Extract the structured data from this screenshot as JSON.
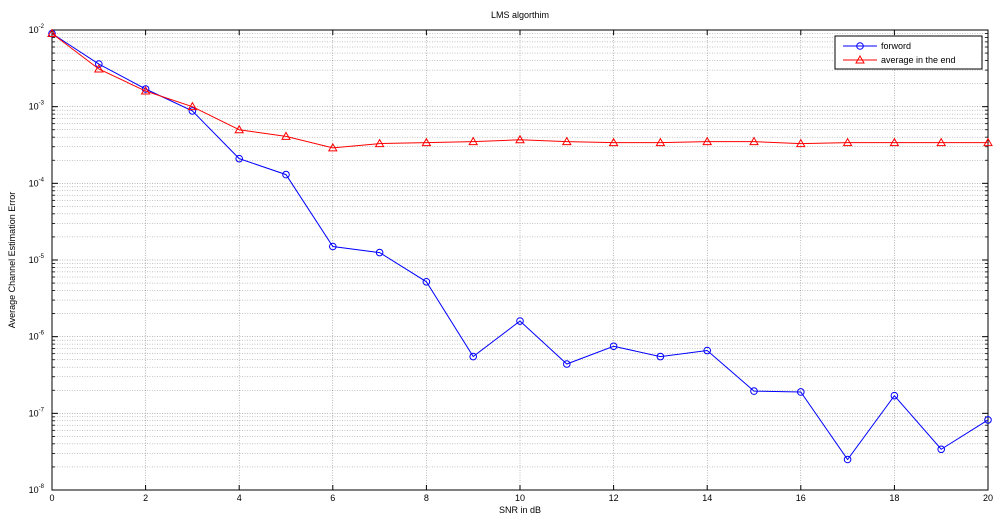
{
  "chart_data": {
    "type": "line",
    "title": "LMS algorthim",
    "xlabel": "SNR in dB",
    "ylabel": "Average Channel Estimation Error",
    "xlim": [
      0,
      20
    ],
    "ylim": [
      1e-08,
      0.01
    ],
    "y_scale": "log",
    "grid": true,
    "legend_position": "top-right",
    "x_ticks": [
      0,
      2,
      4,
      6,
      8,
      10,
      12,
      14,
      16,
      18,
      20
    ],
    "y_ticks": [
      {
        "base": "10",
        "exp": "-8",
        "value": 1e-08
      },
      {
        "base": "10",
        "exp": "-7",
        "value": 1e-07
      },
      {
        "base": "10",
        "exp": "-6",
        "value": 1e-06
      },
      {
        "base": "10",
        "exp": "-5",
        "value": 1e-05
      },
      {
        "base": "10",
        "exp": "-4",
        "value": 0.0001
      },
      {
        "base": "10",
        "exp": "-3",
        "value": 0.001
      },
      {
        "base": "10",
        "exp": "-2",
        "value": 0.01
      }
    ],
    "x": [
      0,
      1,
      2,
      3,
      4,
      5,
      6,
      7,
      8,
      9,
      10,
      11,
      12,
      13,
      14,
      15,
      16,
      17,
      18,
      19,
      20
    ],
    "series": [
      {
        "name": "forword",
        "color": "#0000ff",
        "marker": "circle",
        "values": [
          0.009,
          0.0036,
          0.0017,
          0.00088,
          0.00021,
          0.00013,
          1.5e-05,
          1.25e-05,
          5.2e-06,
          5.5e-07,
          1.6e-06,
          4.4e-07,
          7.5e-07,
          5.5e-07,
          6.6e-07,
          1.95e-07,
          1.9e-07,
          2.5e-08,
          1.7e-07,
          3.4e-08,
          8.2e-08
        ]
      },
      {
        "name": "average in the end",
        "color": "#ff0000",
        "marker": "triangle",
        "values": [
          0.009,
          0.0031,
          0.0016,
          0.001,
          0.0005,
          0.00041,
          0.00029,
          0.00033,
          0.00034,
          0.00035,
          0.00037,
          0.00035,
          0.00034,
          0.00034,
          0.00035,
          0.00035,
          0.00033,
          0.00034,
          0.00034,
          0.00034,
          0.00034
        ]
      }
    ]
  }
}
